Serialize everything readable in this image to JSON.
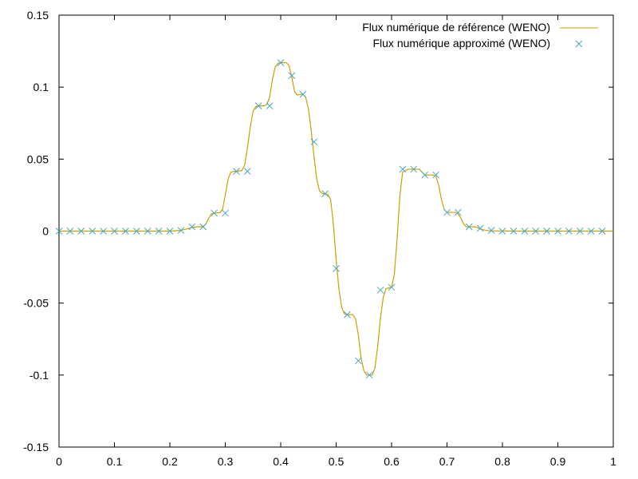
{
  "chart_data": {
    "type": "line",
    "title": "",
    "xlabel": "",
    "ylabel": "",
    "xlim": [
      0,
      1
    ],
    "ylim": [
      -0.15,
      0.15
    ],
    "xticks": [
      "0",
      "0.1",
      "0.2",
      "0.3",
      "0.4",
      "0.5",
      "0.6",
      "0.7",
      "0.8",
      "0.9",
      "1"
    ],
    "yticks": [
      "0.15",
      "0.1",
      "0.05",
      "0",
      "-0.05",
      "-0.1",
      "-0.15"
    ],
    "grid": false,
    "legend_position": "top-right",
    "series": [
      {
        "name": "Flux numérique de référence (WENO)",
        "style": "line",
        "color": "#c8a000",
        "x": [
          0,
          0.2,
          0.22,
          0.23,
          0.24,
          0.25,
          0.26,
          0.265,
          0.27,
          0.275,
          0.28,
          0.29,
          0.295,
          0.3,
          0.305,
          0.31,
          0.315,
          0.32,
          0.33,
          0.335,
          0.34,
          0.345,
          0.35,
          0.355,
          0.36,
          0.37,
          0.375,
          0.38,
          0.385,
          0.39,
          0.395,
          0.4,
          0.41,
          0.415,
          0.42,
          0.425,
          0.43,
          0.435,
          0.44,
          0.445,
          0.45,
          0.455,
          0.46,
          0.465,
          0.47,
          0.475,
          0.48,
          0.485,
          0.49,
          0.495,
          0.5,
          0.505,
          0.51,
          0.515,
          0.52,
          0.525,
          0.53,
          0.535,
          0.54,
          0.545,
          0.55,
          0.555,
          0.56,
          0.565,
          0.57,
          0.575,
          0.58,
          0.585,
          0.59,
          0.595,
          0.6,
          0.605,
          0.61,
          0.615,
          0.62,
          0.63,
          0.64,
          0.645,
          0.65,
          0.655,
          0.66,
          0.67,
          0.675,
          0.68,
          0.685,
          0.69,
          0.695,
          0.7,
          0.71,
          0.715,
          0.72,
          0.725,
          0.73,
          0.735,
          0.74,
          0.75,
          0.755,
          0.76,
          0.765,
          0.77,
          0.775,
          0.78,
          0.79,
          0.8,
          0.82,
          0.85,
          1.0
        ],
        "y": [
          0,
          0,
          0.0005,
          0.0015,
          0.0025,
          0.003,
          0.003,
          0.005,
          0.009,
          0.012,
          0.0125,
          0.0128,
          0.015,
          0.025,
          0.036,
          0.041,
          0.0415,
          0.0415,
          0.042,
          0.046,
          0.058,
          0.072,
          0.083,
          0.0865,
          0.087,
          0.087,
          0.088,
          0.093,
          0.105,
          0.114,
          0.1165,
          0.117,
          0.117,
          0.115,
          0.107,
          0.097,
          0.0945,
          0.095,
          0.095,
          0.093,
          0.085,
          0.07,
          0.052,
          0.036,
          0.028,
          0.026,
          0.026,
          0.0255,
          0.022,
          0.005,
          -0.02,
          -0.04,
          -0.053,
          -0.0575,
          -0.058,
          -0.058,
          -0.058,
          -0.061,
          -0.072,
          -0.088,
          -0.097,
          -0.1,
          -0.1,
          -0.1,
          -0.095,
          -0.08,
          -0.06,
          -0.046,
          -0.04,
          -0.0395,
          -0.039,
          -0.03,
          -0.005,
          0.025,
          0.041,
          0.043,
          0.043,
          0.043,
          0.043,
          0.041,
          0.039,
          0.039,
          0.039,
          0.038,
          0.032,
          0.022,
          0.015,
          0.013,
          0.013,
          0.013,
          0.012,
          0.009,
          0.005,
          0.003,
          0.003,
          0.003,
          0.0025,
          0.0015,
          0.001,
          0.0005,
          0.0003,
          0.0002,
          0.0001,
          0.0001,
          0,
          0,
          0
        ]
      },
      {
        "name": "Flux numérique approximé (WENO)",
        "style": "marker-x",
        "color": "#4aa6c6",
        "x": [
          0,
          0.02,
          0.04,
          0.06,
          0.08,
          0.1,
          0.12,
          0.14,
          0.16,
          0.18,
          0.2,
          0.22,
          0.24,
          0.26,
          0.28,
          0.3,
          0.32,
          0.34,
          0.36,
          0.38,
          0.4,
          0.42,
          0.44,
          0.46,
          0.48,
          0.5,
          0.52,
          0.54,
          0.56,
          0.58,
          0.6,
          0.62,
          0.64,
          0.66,
          0.68,
          0.7,
          0.72,
          0.74,
          0.76,
          0.78,
          0.8,
          0.82,
          0.84,
          0.86,
          0.88,
          0.9,
          0.92,
          0.94,
          0.96,
          0.98
        ],
        "y": [
          0,
          0,
          0,
          0,
          0,
          0,
          0,
          0,
          0,
          0,
          0,
          0.0005,
          0.003,
          0.003,
          0.0125,
          0.0125,
          0.0415,
          0.0415,
          0.087,
          0.087,
          0.117,
          0.108,
          0.095,
          0.062,
          0.026,
          -0.026,
          -0.058,
          -0.09,
          -0.1,
          -0.041,
          -0.039,
          0.043,
          0.043,
          0.039,
          0.039,
          0.013,
          0.013,
          0.003,
          0.002,
          0.0005,
          0,
          0,
          0,
          0,
          0,
          0,
          0,
          0,
          0,
          0
        ]
      }
    ]
  }
}
